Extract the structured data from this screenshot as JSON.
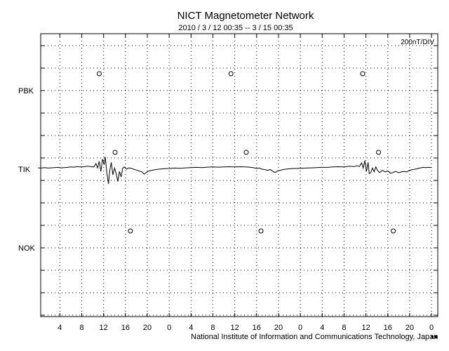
{
  "chart_data": {
    "type": "line",
    "title": "NICT Magnetometer Network",
    "subtitle": "2010 / 3 / 12   00:35 --  3 / 15   00:35",
    "scale_label": "200nT/DIV",
    "footer": "National Institute of Information and Communications Technology, Japan",
    "x_tick_labels": [
      "4",
      "8",
      "12",
      "16",
      "20",
      "0",
      "4",
      "8",
      "12",
      "16",
      "20",
      "0",
      "4",
      "8",
      "12",
      "16",
      "20",
      "0"
    ],
    "x_tick_hours": [
      4,
      8,
      12,
      16,
      20,
      24,
      28,
      32,
      36,
      40,
      44,
      48,
      52,
      56,
      60,
      64,
      68,
      72
    ],
    "xlim": [
      0,
      72
    ],
    "stations": [
      "PBK",
      "TIK",
      "NOK"
    ],
    "grid": true,
    "series": [
      {
        "name": "TIK",
        "values": [
          [
            0.0,
            0.06
          ],
          [
            0.6,
            0.05
          ],
          [
            1.2,
            0.07
          ],
          [
            1.8,
            0.05
          ],
          [
            2.4,
            0.06
          ],
          [
            3.0,
            0.07
          ],
          [
            3.6,
            0.08
          ],
          [
            4.2,
            0.06
          ],
          [
            4.8,
            0.07
          ],
          [
            5.4,
            0.08
          ],
          [
            6.0,
            0.1
          ],
          [
            6.6,
            0.09
          ],
          [
            7.2,
            0.12
          ],
          [
            7.8,
            0.1
          ],
          [
            8.4,
            0.11
          ],
          [
            9.0,
            0.13
          ],
          [
            9.6,
            0.12
          ],
          [
            10.2,
            0.1
          ],
          [
            10.6,
            0.25
          ],
          [
            10.9,
            0.05
          ],
          [
            11.2,
            0.35
          ],
          [
            11.5,
            -0.1
          ],
          [
            11.8,
            0.45
          ],
          [
            12.1,
            0.2
          ],
          [
            12.3,
            0.55
          ],
          [
            12.6,
            -0.2
          ],
          [
            12.9,
            -0.65
          ],
          [
            13.1,
            -0.1
          ],
          [
            13.4,
            0.3
          ],
          [
            13.7,
            -0.25
          ],
          [
            14.0,
            0.05
          ],
          [
            14.3,
            -0.2
          ],
          [
            14.6,
            -0.55
          ],
          [
            14.9,
            -0.1
          ],
          [
            15.2,
            -0.35
          ],
          [
            15.5,
            0.05
          ],
          [
            15.8,
            0.1
          ],
          [
            16.2,
            0.0
          ],
          [
            16.6,
            0.06
          ],
          [
            17.0,
            0.04
          ],
          [
            17.5,
            0.0
          ],
          [
            18.0,
            -0.04
          ],
          [
            18.5,
            -0.08
          ],
          [
            19.0,
            -0.12
          ],
          [
            19.4,
            -0.22
          ],
          [
            19.8,
            -0.15
          ],
          [
            20.3,
            -0.08
          ],
          [
            21.0,
            -0.04
          ],
          [
            22.0,
            0.0
          ],
          [
            23.0,
            0.02
          ],
          [
            24.0,
            0.03
          ],
          [
            25.0,
            0.05
          ],
          [
            26.0,
            0.04
          ],
          [
            27.0,
            0.06
          ],
          [
            28.0,
            0.07
          ],
          [
            29.0,
            0.08
          ],
          [
            30.0,
            0.07
          ],
          [
            31.0,
            0.09
          ],
          [
            32.0,
            0.1
          ],
          [
            33.0,
            0.09
          ],
          [
            34.0,
            0.1
          ],
          [
            35.0,
            0.11
          ],
          [
            36.0,
            0.1
          ],
          [
            37.0,
            0.11
          ],
          [
            38.0,
            0.1
          ],
          [
            39.0,
            0.08
          ],
          [
            39.6,
            0.06
          ],
          [
            40.0,
            0.03
          ],
          [
            40.5,
            0.05
          ],
          [
            41.0,
            0.0
          ],
          [
            41.5,
            -0.02
          ],
          [
            42.0,
            -0.05
          ],
          [
            42.5,
            -0.02
          ],
          [
            43.0,
            -0.1
          ],
          [
            43.4,
            -0.15
          ],
          [
            43.8,
            -0.08
          ],
          [
            44.3,
            -0.05
          ],
          [
            45.0,
            -0.01
          ],
          [
            46.0,
            0.02
          ],
          [
            47.0,
            0.03
          ],
          [
            48.0,
            0.04
          ],
          [
            49.0,
            0.05
          ],
          [
            50.0,
            0.06
          ],
          [
            51.0,
            0.07
          ],
          [
            52.0,
            0.08
          ],
          [
            53.0,
            0.08
          ],
          [
            54.0,
            0.1
          ],
          [
            55.0,
            0.11
          ],
          [
            56.0,
            0.1
          ],
          [
            57.0,
            0.13
          ],
          [
            57.8,
            0.12
          ],
          [
            58.4,
            0.15
          ],
          [
            58.8,
            0.12
          ],
          [
            59.2,
            0.28
          ],
          [
            59.5,
            0.05
          ],
          [
            59.8,
            0.38
          ],
          [
            60.1,
            -0.1
          ],
          [
            60.4,
            0.3
          ],
          [
            60.6,
            -0.2
          ],
          [
            60.9,
            -0.15
          ],
          [
            61.2,
            0.05
          ],
          [
            61.5,
            -0.12
          ],
          [
            61.8,
            0.1
          ],
          [
            62.1,
            -0.05
          ],
          [
            62.5,
            -0.15
          ],
          [
            63.0,
            -0.05
          ],
          [
            63.5,
            -0.12
          ],
          [
            64.0,
            -0.08
          ],
          [
            64.5,
            -0.18
          ],
          [
            65.0,
            -0.14
          ],
          [
            65.5,
            -0.1
          ],
          [
            66.0,
            -0.16
          ],
          [
            66.5,
            -0.12
          ],
          [
            67.0,
            -0.1
          ],
          [
            67.5,
            -0.12
          ],
          [
            68.0,
            -0.05
          ],
          [
            68.5,
            -0.02
          ],
          [
            69.0,
            0.0
          ],
          [
            69.5,
            0.03
          ],
          [
            70.0,
            0.06
          ],
          [
            70.5,
            0.08
          ],
          [
            71.0,
            0.07
          ],
          [
            71.5,
            0.08
          ],
          [
            72.0,
            0.07
          ]
        ]
      }
    ],
    "markers": {
      "PBK": [
        11.2,
        35.3,
        59.4
      ],
      "TIK": [
        14.1,
        38.1,
        62.3
      ],
      "NOK": [
        16.9,
        40.8,
        65.0
      ]
    },
    "colors": {
      "line": "#000000",
      "grid": "#000000",
      "background": "#ffffff"
    }
  }
}
